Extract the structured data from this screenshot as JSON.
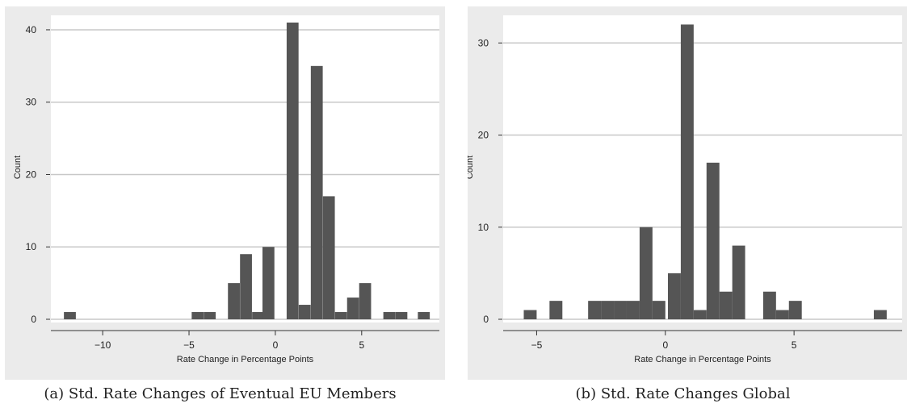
{
  "chart_data": [
    {
      "type": "bar",
      "caption": "(a) Std. Rate Changes of Eventual EU Members",
      "xlabel": "Rate Change in Percentage Points",
      "ylabel": "Count",
      "xlim": [
        -13,
        9.5
      ],
      "ylim": [
        0,
        42
      ],
      "xticks": [
        -10,
        -5,
        0,
        5
      ],
      "yticks": [
        0,
        10,
        20,
        30,
        40
      ],
      "grid": true,
      "bin_width": 0.69,
      "bins": [
        {
          "x": -11.9,
          "count": 1
        },
        {
          "x": -4.5,
          "count": 1
        },
        {
          "x": -3.8,
          "count": 1
        },
        {
          "x": -2.4,
          "count": 5
        },
        {
          "x": -1.7,
          "count": 9
        },
        {
          "x": -1.0,
          "count": 1
        },
        {
          "x": -0.4,
          "count": 10
        },
        {
          "x": 1.0,
          "count": 41
        },
        {
          "x": 1.7,
          "count": 2
        },
        {
          "x": 2.4,
          "count": 35
        },
        {
          "x": 3.1,
          "count": 17
        },
        {
          "x": 3.8,
          "count": 1
        },
        {
          "x": 4.5,
          "count": 3
        },
        {
          "x": 5.2,
          "count": 5
        },
        {
          "x": 6.6,
          "count": 1
        },
        {
          "x": 7.3,
          "count": 1
        },
        {
          "x": 8.6,
          "count": 1
        }
      ],
      "bar_color": "#555555"
    },
    {
      "type": "bar",
      "caption": "(b) Std. Rate Changes Global",
      "xlabel": "Rate Change in Percentage Points",
      "ylabel": "Count",
      "xlim": [
        -6.3,
        9.2
      ],
      "ylim": [
        0,
        33
      ],
      "xticks": [
        -5,
        0,
        5
      ],
      "yticks": [
        0,
        10,
        20,
        30
      ],
      "grid": true,
      "bin_width": 0.5,
      "bins": [
        {
          "x": -5.25,
          "count": 1
        },
        {
          "x": -4.25,
          "count": 2
        },
        {
          "x": -2.75,
          "count": 2
        },
        {
          "x": -2.25,
          "count": 2
        },
        {
          "x": -1.75,
          "count": 2
        },
        {
          "x": -1.25,
          "count": 2
        },
        {
          "x": -0.75,
          "count": 10
        },
        {
          "x": -0.25,
          "count": 2
        },
        {
          "x": 0.35,
          "count": 5
        },
        {
          "x": 0.85,
          "count": 32
        },
        {
          "x": 1.35,
          "count": 1
        },
        {
          "x": 1.85,
          "count": 17
        },
        {
          "x": 2.35,
          "count": 3
        },
        {
          "x": 2.85,
          "count": 8
        },
        {
          "x": 4.05,
          "count": 3
        },
        {
          "x": 4.55,
          "count": 1
        },
        {
          "x": 5.05,
          "count": 2
        },
        {
          "x": 8.35,
          "count": 1
        }
      ],
      "bar_color": "#555555"
    }
  ]
}
